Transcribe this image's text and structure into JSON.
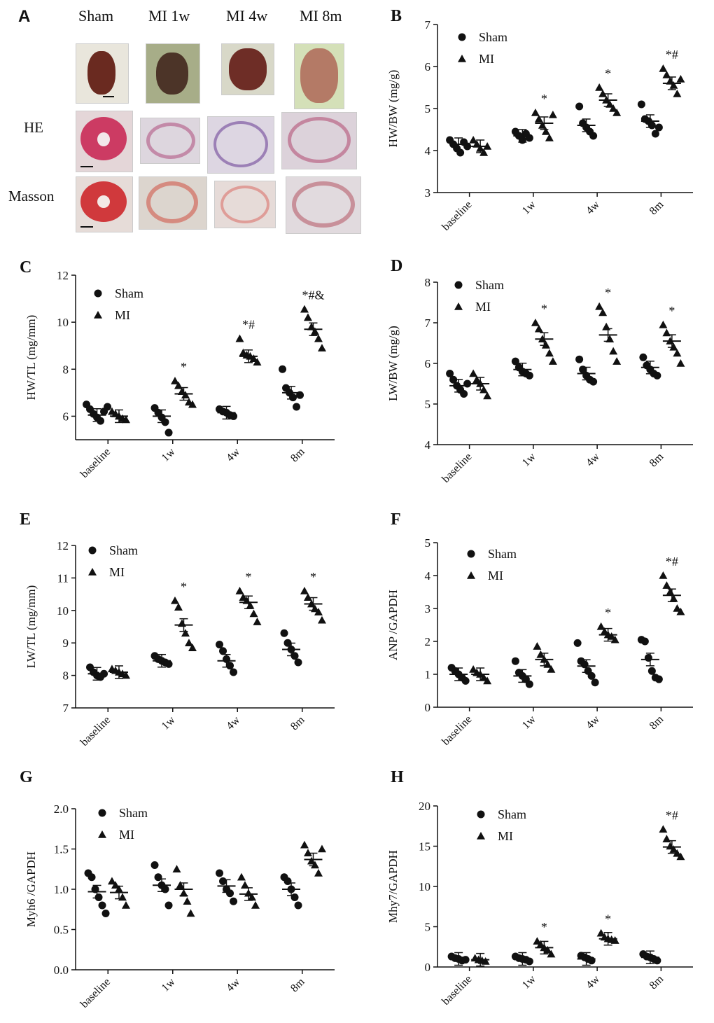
{
  "panelA": {
    "letter": "A",
    "columns": [
      "Sham",
      "MI 1w",
      "MI 4w",
      "MI 8m"
    ],
    "rows": [
      "HE",
      "Masson"
    ]
  },
  "chart_data": [
    {
      "letter": "B",
      "type": "scatter",
      "ylabel": "HW/BW (mg/g)",
      "ylim": [
        3,
        7
      ],
      "yticks": [
        "3",
        "4",
        "5",
        "6",
        "7"
      ],
      "ytickvals": [
        3,
        4,
        5,
        6,
        7
      ],
      "categories": [
        "baseline",
        "1w",
        "4w",
        "8m"
      ],
      "legend": [
        "Sham",
        "MI"
      ],
      "series": [
        {
          "name": "Sham",
          "marker": "circle",
          "mean": [
            4.15,
            4.35,
            4.6,
            4.7
          ],
          "points": [
            [
              4.25,
              4.15,
              4.05,
              3.95,
              4.2,
              4.1
            ],
            [
              4.45,
              4.35,
              4.25,
              4.4,
              4.3
            ],
            [
              5.05,
              4.65,
              4.55,
              4.45,
              4.35
            ],
            [
              5.1,
              4.75,
              4.7,
              4.6,
              4.4,
              4.55
            ]
          ]
        },
        {
          "name": "MI",
          "marker": "triangle",
          "mean": [
            4.1,
            4.65,
            5.2,
            5.6
          ],
          "points": [
            [
              4.25,
              4.15,
              4.05,
              3.95,
              4.1
            ],
            [
              4.9,
              4.75,
              4.6,
              4.45,
              4.3,
              4.85
            ],
            [
              5.5,
              5.35,
              5.2,
              5.1,
              5.0,
              4.9
            ],
            [
              5.95,
              5.8,
              5.65,
              5.55,
              5.35,
              5.7
            ]
          ]
        }
      ],
      "annotations": [
        "",
        "*",
        "*",
        "*#"
      ]
    },
    {
      "letter": "C",
      "type": "scatter",
      "ylabel": "HW/TL (mg/mm)",
      "ylim": [
        5,
        12
      ],
      "yticks": [
        "6",
        "8",
        "10",
        "12"
      ],
      "ytickvals": [
        6,
        8,
        10,
        12
      ],
      "categories": [
        "baseline",
        "1w",
        "4w",
        "8m"
      ],
      "legend": [
        "Sham",
        "MI"
      ],
      "series": [
        {
          "name": "Sham",
          "marker": "circle",
          "mean": [
            6.05,
            6.0,
            6.15,
            7.0
          ],
          "points": [
            [
              6.5,
              6.3,
              6.1,
              5.95,
              5.8,
              6.2,
              6.4
            ],
            [
              6.35,
              6.15,
              5.95,
              5.75,
              5.3
            ],
            [
              6.3,
              6.2,
              6.15,
              6.05,
              6.0
            ],
            [
              8.0,
              7.2,
              7.0,
              6.8,
              6.4,
              6.9
            ]
          ]
        },
        {
          "name": "MI",
          "marker": "triangle",
          "mean": [
            6.0,
            6.95,
            8.55,
            9.7
          ],
          "points": [
            [
              6.2,
              6.1,
              6.0,
              5.9,
              5.85
            ],
            [
              7.5,
              7.3,
              7.05,
              6.9,
              6.6,
              6.5
            ],
            [
              9.3,
              8.7,
              8.6,
              8.55,
              8.45,
              8.3
            ],
            [
              10.55,
              10.2,
              9.8,
              9.6,
              9.3,
              8.9
            ]
          ]
        }
      ],
      "annotations": [
        "",
        "*",
        "*#",
        "*#&"
      ]
    },
    {
      "letter": "D",
      "type": "scatter",
      "ylabel": "LW/BW (mg/g)",
      "ylim": [
        4,
        8
      ],
      "yticks": [
        "4",
        "5",
        "6",
        "7",
        "8"
      ],
      "ytickvals": [
        4,
        5,
        6,
        7,
        8
      ],
      "categories": [
        "baseline",
        "1w",
        "4w",
        "8m"
      ],
      "legend": [
        "Sham",
        "MI"
      ],
      "series": [
        {
          "name": "Sham",
          "marker": "circle",
          "mean": [
            5.45,
            5.85,
            5.75,
            5.9
          ],
          "points": [
            [
              5.75,
              5.6,
              5.45,
              5.35,
              5.25,
              5.5
            ],
            [
              6.05,
              5.9,
              5.8,
              5.75,
              5.7
            ],
            [
              6.1,
              5.85,
              5.7,
              5.6,
              5.55
            ],
            [
              6.15,
              5.95,
              5.85,
              5.75,
              5.7
            ]
          ]
        },
        {
          "name": "MI",
          "marker": "triangle",
          "mean": [
            5.5,
            6.6,
            6.7,
            6.55
          ],
          "points": [
            [
              5.75,
              5.6,
              5.5,
              5.35,
              5.2
            ],
            [
              7.0,
              6.85,
              6.6,
              6.45,
              6.25,
              6.05
            ],
            [
              7.4,
              7.25,
              6.9,
              6.6,
              6.3,
              6.05
            ],
            [
              6.95,
              6.75,
              6.55,
              6.4,
              6.25,
              6.0
            ]
          ]
        }
      ],
      "annotations": [
        "",
        "*",
        "*",
        "*"
      ]
    },
    {
      "letter": "E",
      "type": "scatter",
      "ylabel": "LW/TL (mg/mm)",
      "ylim": [
        7,
        12
      ],
      "yticks": [
        "7",
        "8",
        "9",
        "10",
        "11",
        "12"
      ],
      "ytickvals": [
        7,
        8,
        9,
        10,
        11,
        12
      ],
      "categories": [
        "baseline",
        "1w",
        "4w",
        "8m"
      ],
      "legend": [
        "Sham",
        "MI"
      ],
      "series": [
        {
          "name": "Sham",
          "marker": "circle",
          "mean": [
            8.05,
            8.45,
            8.45,
            8.8
          ],
          "points": [
            [
              8.25,
              8.1,
              8.0,
              7.95,
              8.05
            ],
            [
              8.6,
              8.5,
              8.45,
              8.4,
              8.35
            ],
            [
              8.95,
              8.75,
              8.5,
              8.3,
              8.1
            ],
            [
              9.3,
              9.0,
              8.8,
              8.6,
              8.4
            ]
          ]
        },
        {
          "name": "MI",
          "marker": "triangle",
          "mean": [
            8.1,
            9.55,
            10.25,
            10.2
          ],
          "points": [
            [
              8.2,
              8.15,
              8.1,
              8.05,
              8.0
            ],
            [
              10.3,
              10.1,
              9.6,
              9.3,
              9.0,
              8.85
            ],
            [
              10.6,
              10.4,
              10.3,
              10.15,
              9.9,
              9.65
            ],
            [
              10.6,
              10.4,
              10.2,
              10.05,
              9.95,
              9.7
            ]
          ]
        }
      ],
      "annotations": [
        "",
        "*",
        "*",
        "*"
      ]
    },
    {
      "letter": "F",
      "type": "scatter",
      "ylabel": "ANP /GAPDH",
      "ylim": [
        0,
        5
      ],
      "yticks": [
        "0",
        "1",
        "2",
        "3",
        "4",
        "5"
      ],
      "ytickvals": [
        0,
        1,
        2,
        3,
        4,
        5
      ],
      "categories": [
        "baseline",
        "1w",
        "4w",
        "8m"
      ],
      "legend": [
        "Sham",
        "MI"
      ],
      "series": [
        {
          "name": "Sham",
          "marker": "circle",
          "mean": [
            1.0,
            0.95,
            1.25,
            1.45
          ],
          "points": [
            [
              1.2,
              1.1,
              1.0,
              0.9,
              0.8
            ],
            [
              1.4,
              1.05,
              0.95,
              0.85,
              0.7
            ],
            [
              1.95,
              1.4,
              1.3,
              1.1,
              0.95,
              0.75
            ],
            [
              2.05,
              2.0,
              1.5,
              1.1,
              0.9,
              0.85
            ]
          ]
        },
        {
          "name": "MI",
          "marker": "triangle",
          "mean": [
            1.0,
            1.45,
            2.2,
            3.4
          ],
          "points": [
            [
              1.15,
              1.05,
              1.0,
              0.9,
              0.8
            ],
            [
              1.85,
              1.6,
              1.45,
              1.3,
              1.15
            ],
            [
              2.45,
              2.3,
              2.2,
              2.15,
              2.05
            ],
            [
              4.0,
              3.7,
              3.5,
              3.3,
              3.0,
              2.9
            ]
          ]
        }
      ],
      "annotations": [
        "",
        "",
        "*",
        "*#"
      ]
    },
    {
      "letter": "G",
      "type": "scatter",
      "ylabel": "Myh6 /GAPDH",
      "ylim": [
        0,
        2
      ],
      "yticks": [
        "0.0",
        "0.5",
        "1.0",
        "1.5",
        "2.0"
      ],
      "ytickvals": [
        0,
        0.5,
        1.0,
        1.5,
        2.0
      ],
      "categories": [
        "baseline",
        "1w",
        "4w",
        "8m"
      ],
      "legend": [
        "Sham",
        "MI"
      ],
      "series": [
        {
          "name": "Sham",
          "marker": "circle",
          "mean": [
            0.97,
            1.05,
            1.04,
            1.0
          ],
          "points": [
            [
              1.2,
              1.15,
              1.0,
              0.9,
              0.8,
              0.7
            ],
            [
              1.3,
              1.15,
              1.05,
              1.0,
              0.8
            ],
            [
              1.2,
              1.1,
              1.0,
              0.95,
              0.85
            ],
            [
              1.15,
              1.1,
              1.0,
              0.9,
              0.8
            ]
          ]
        },
        {
          "name": "MI",
          "marker": "triangle",
          "mean": [
            0.96,
            1.0,
            0.94,
            1.37
          ],
          "points": [
            [
              1.1,
              1.05,
              1.0,
              0.9,
              0.8
            ],
            [
              1.25,
              1.05,
              0.95,
              0.85,
              0.7
            ],
            [
              1.15,
              1.05,
              0.95,
              0.9,
              0.8
            ],
            [
              1.55,
              1.45,
              1.35,
              1.3,
              1.2,
              1.5
            ]
          ]
        }
      ],
      "annotations": [
        "",
        "",
        "",
        ""
      ]
    },
    {
      "letter": "H",
      "type": "scatter",
      "ylabel": "Mhy7/GAPDH",
      "ylim": [
        0,
        20
      ],
      "yticks": [
        "0",
        "5",
        "10",
        "15",
        "20"
      ],
      "ytickvals": [
        0,
        5,
        10,
        15,
        20
      ],
      "categories": [
        "baseline",
        "1w",
        "4w",
        "8m"
      ],
      "legend": [
        "Sham",
        "MI"
      ],
      "series": [
        {
          "name": "Sham",
          "marker": "circle",
          "mean": [
            1.0,
            1.0,
            1.0,
            1.2
          ],
          "points": [
            [
              1.3,
              1.1,
              1.0,
              0.8,
              0.9
            ],
            [
              1.3,
              1.1,
              1.0,
              0.9,
              0.7
            ],
            [
              1.4,
              1.2,
              1.0,
              0.8
            ],
            [
              1.6,
              1.3,
              1.2,
              1.0,
              0.8
            ]
          ]
        },
        {
          "name": "MI",
          "marker": "triangle",
          "mean": [
            0.9,
            2.4,
            3.5,
            14.9
          ],
          "points": [
            [
              1.1,
              0.9,
              0.8,
              0.7
            ],
            [
              3.2,
              2.8,
              2.4,
              2.1,
              1.6
            ],
            [
              4.2,
              3.7,
              3.5,
              3.4,
              3.3
            ],
            [
              17.1,
              15.9,
              15.0,
              14.6,
              14.1,
              13.7
            ]
          ]
        }
      ],
      "annotations": [
        "",
        "*",
        "*",
        "*#"
      ]
    }
  ]
}
